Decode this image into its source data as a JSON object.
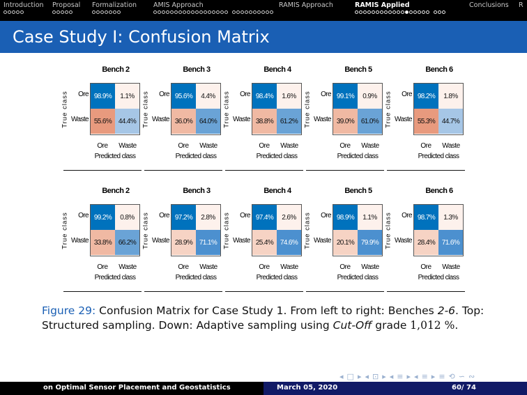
{
  "nav": {
    "sections": [
      {
        "label": "Introduction",
        "dots": 5,
        "filled": -1,
        "current": false
      },
      {
        "label": "Proposal",
        "dots": 5,
        "filled": -1,
        "current": false
      },
      {
        "label": "Formalization",
        "dots": 7,
        "filled": -1,
        "current": false
      },
      {
        "label": "AMIS Approach",
        "dots": 18,
        "gap_after": 18,
        "extra": 10,
        "filled": -1,
        "current": false
      },
      {
        "label": "RAMIS Approach",
        "dots": 0,
        "filled": -1,
        "current": false
      },
      {
        "label": "RAMIS Applied",
        "dots": 18,
        "gap_after": 18,
        "extra": 3,
        "filled": 12,
        "current": true
      },
      {
        "label": "Conclusions",
        "dots": 0,
        "filled": -1,
        "current": false
      },
      {
        "label": "R",
        "dots": 0,
        "filled": -1,
        "current": false
      }
    ]
  },
  "slide": {
    "title": "Case Study I: Confusion Matrix"
  },
  "labels": {
    "ylabel": "True class",
    "xlabel": "Predicted class",
    "classes": [
      "Ore",
      "Waste"
    ]
  },
  "colors": {
    "navbar": "#000000",
    "titlebar": "#1a5fb4",
    "accent": "#1a5fb4",
    "footer_right": "#111a66"
  },
  "chart_data": [
    {
      "type": "heatmap",
      "group": "Structured sampling",
      "panels": [
        {
          "title": "Bench 2",
          "values": [
            [
              "98.9%",
              "1.1%"
            ],
            [
              "55.6%",
              "44.4%"
            ]
          ]
        },
        {
          "title": "Bench 3",
          "values": [
            [
              "95.6%",
              "4.4%"
            ],
            [
              "36.0%",
              "64.0%"
            ]
          ]
        },
        {
          "title": "Bench 4",
          "values": [
            [
              "98.4%",
              "1.6%"
            ],
            [
              "38.8%",
              "61.2%"
            ]
          ]
        },
        {
          "title": "Bench 5",
          "values": [
            [
              "99.1%",
              "0.9%"
            ],
            [
              "39.0%",
              "61.0%"
            ]
          ]
        },
        {
          "title": "Bench 6",
          "values": [
            [
              "98.2%",
              "1.8%"
            ],
            [
              "55.3%",
              "44.7%"
            ]
          ]
        }
      ]
    },
    {
      "type": "heatmap",
      "group": "Adaptive sampling",
      "panels": [
        {
          "title": "Bench 2",
          "values": [
            [
              "99.2%",
              "0.8%"
            ],
            [
              "33.8%",
              "66.2%"
            ]
          ]
        },
        {
          "title": "Bench 3",
          "values": [
            [
              "97.2%",
              "2.8%"
            ],
            [
              "28.9%",
              "71.1%"
            ]
          ]
        },
        {
          "title": "Bench 4",
          "values": [
            [
              "97.4%",
              "2.6%"
            ],
            [
              "25.4%",
              "74.6%"
            ]
          ]
        },
        {
          "title": "Bench 5",
          "values": [
            [
              "98.9%",
              "1.1%"
            ],
            [
              "20.1%",
              "79.9%"
            ]
          ]
        },
        {
          "title": "Bench 6",
          "values": [
            [
              "98.7%",
              "1.3%"
            ],
            [
              "28.4%",
              "71.6%"
            ]
          ]
        }
      ]
    }
  ],
  "caption": {
    "label": "Figure 29:",
    "part1": "Confusion Matrix for Case Study 1. From left to right: Benches",
    "benches": "2-6",
    "part2": ". Top: Structured sampling. Down: Adaptive sampling using",
    "cutoff": "Cut-Off",
    "part3": "grade",
    "grade": "1,012 %",
    "part4": "."
  },
  "footer": {
    "title": "on Optimal Sensor Placement and Geostatistics",
    "date": "March 05, 2020",
    "page": "60/ 74"
  }
}
